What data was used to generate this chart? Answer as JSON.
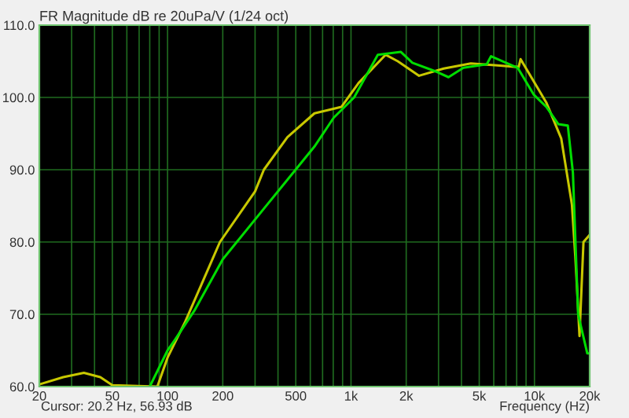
{
  "chart_data": {
    "type": "line",
    "title": "FR Magnitude dB re 20uPa/V (1/24 oct)",
    "xlabel": "Frequency (Hz)",
    "annotations": [
      "Cursor: 20.2 Hz, 56.93 dB"
    ],
    "log": "x",
    "grid": true,
    "xlim": [
      20,
      20000
    ],
    "ylim": [
      60,
      110
    ],
    "xticks": [
      20,
      {
        "value": 30,
        "label": null
      },
      {
        "value": 40,
        "label": null
      },
      50,
      {
        "value": 60,
        "label": null
      },
      {
        "value": 70,
        "label": null
      },
      {
        "value": 80,
        "label": null
      },
      {
        "value": 90,
        "label": null
      },
      100,
      200,
      {
        "value": 300,
        "label": null
      },
      {
        "value": 400,
        "label": null
      },
      500,
      {
        "value": 600,
        "label": null
      },
      {
        "value": 700,
        "label": null
      },
      {
        "value": 800,
        "label": null
      },
      {
        "value": 900,
        "label": null
      },
      {
        "value": 1000,
        "label": "1k"
      },
      {
        "value": 2000,
        "label": "2k"
      },
      {
        "value": 3000,
        "label": null
      },
      {
        "value": 4000,
        "label": null
      },
      {
        "value": 5000,
        "label": "5k"
      },
      {
        "value": 6000,
        "label": null
      },
      {
        "value": 7000,
        "label": null
      },
      {
        "value": 8000,
        "label": null
      },
      {
        "value": 9000,
        "label": null
      },
      {
        "value": 10000,
        "label": "10k"
      },
      {
        "value": 20000,
        "label": "20k"
      }
    ],
    "yticks": [
      {
        "value": 60,
        "label": "60.0"
      },
      {
        "value": 70,
        "label": "70.0"
      },
      {
        "value": 80,
        "label": "80.0"
      },
      {
        "value": 90,
        "label": "90.0"
      },
      {
        "value": 100,
        "label": "100.0"
      },
      {
        "value": 110,
        "label": "110.0"
      }
    ],
    "series": [
      {
        "color": "#c8c800",
        "x": [
          20,
          27,
          35,
          43,
          50,
          88,
          100,
          125,
          193,
          300,
          335,
          450,
          632,
          888,
          1100,
          1543,
          1800,
          2350,
          3200,
          4500,
          6500,
          8200,
          8400,
          11600,
          14000,
          16000,
          16700,
          17200,
          17600,
          18500,
          20000
        ],
        "values": [
          60.3,
          61.3,
          61.9,
          61.3,
          60.2,
          60,
          64,
          69,
          80,
          87,
          90,
          94.5,
          97.8,
          98.7,
          102,
          105.9,
          105,
          103,
          104,
          104.7,
          104.4,
          104.2,
          105.3,
          99.3,
          94.3,
          85.2,
          78,
          72,
          67,
          80,
          81
        ]
      },
      {
        "color": "#00dd00",
        "x": [
          80,
          100,
          110,
          140,
          200,
          350,
          632,
          805,
          1040,
          1400,
          1870,
          2160,
          2960,
          3400,
          4100,
          5500,
          5800,
          8100,
          9900,
          11600,
          13500,
          15200,
          16200,
          17300,
          19400,
          20000
        ],
        "values": [
          60,
          65,
          66.5,
          70.5,
          77.6,
          85.2,
          93.2,
          97.2,
          100,
          105.9,
          106.3,
          104.8,
          103.5,
          102.8,
          104.1,
          104.6,
          105.7,
          104.1,
          100.4,
          98.7,
          96.3,
          96.1,
          89.6,
          70,
          64.6,
          64.6
        ]
      }
    ]
  }
}
